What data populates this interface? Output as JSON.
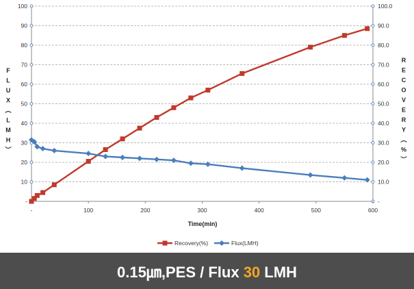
{
  "chart_data": {
    "type": "line",
    "title": "",
    "xlabel": "Time(min)",
    "ylabel_left": "FLUX(LMH)",
    "ylabel_right": "RECOVERY(%)",
    "xlim": [
      0,
      600
    ],
    "ylim_left": [
      0,
      100
    ],
    "ylim_right": [
      0,
      100
    ],
    "x_ticks": [
      "-",
      "100",
      "200",
      "300",
      "400",
      "500",
      "600"
    ],
    "y_left_ticks": [
      "-",
      "10",
      "20",
      "30",
      "40",
      "50",
      "60",
      "70",
      "80",
      "90",
      "100"
    ],
    "y_right_ticks": [
      "-",
      "10.0",
      "20.0",
      "30.0",
      "40.0",
      "50.0",
      "60.0",
      "70.0",
      "80.0",
      "90.0",
      "100.0"
    ],
    "grid": "horizontal-dashed",
    "legend_position": "bottom",
    "series": [
      {
        "name": "Recovery(%)",
        "axis": "right",
        "color": "#c0392b",
        "marker": "square",
        "x": [
          0,
          5,
          10,
          20,
          40,
          100,
          130,
          160,
          190,
          220,
          250,
          280,
          310,
          370,
          490,
          550,
          590
        ],
        "values": [
          0,
          1.5,
          3,
          4.5,
          8.5,
          20.5,
          26.5,
          32,
          37.5,
          43,
          48,
          53,
          57,
          65.5,
          79,
          85,
          88.5
        ]
      },
      {
        "name": "Flux(LMH)",
        "axis": "left",
        "color": "#4a7ebb",
        "marker": "diamond",
        "x": [
          0,
          5,
          10,
          20,
          40,
          100,
          130,
          160,
          190,
          220,
          250,
          280,
          310,
          370,
          490,
          550,
          590
        ],
        "values": [
          31.5,
          30.5,
          28,
          27,
          26,
          24.5,
          23,
          22.5,
          22,
          21.5,
          21,
          19.5,
          19,
          17,
          13.5,
          12,
          11
        ]
      }
    ]
  },
  "caption": {
    "prefix": "0.15㎛,PES / Flux ",
    "highlight": "30",
    "suffix": " LMH",
    "highlight_color": "#f5a623"
  }
}
